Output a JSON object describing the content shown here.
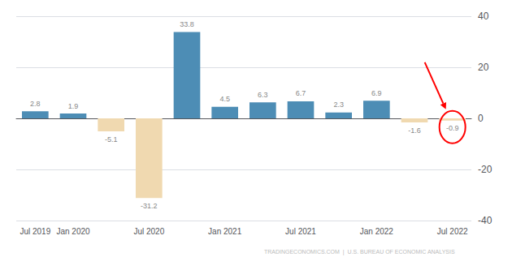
{
  "chart_data": {
    "type": "bar",
    "categories": [
      "Jul 2019",
      "Jan 2020",
      null,
      "Jul 2020",
      null,
      "Jan 2021",
      null,
      "Jul 2021",
      null,
      "Jan 2022",
      null,
      "Jul 2022"
    ],
    "values": [
      2.8,
      1.9,
      -5.1,
      -31.2,
      33.8,
      4.5,
      6.3,
      6.7,
      2.3,
      6.9,
      -1.6,
      -0.9
    ],
    "colors": [
      "#4d8db5",
      "#4d8db5",
      "#f0d9b0",
      "#f0d9b0",
      "#4d8db5",
      "#4d8db5",
      "#4d8db5",
      "#4d8db5",
      "#4d8db5",
      "#4d8db5",
      "#f0d9b0",
      "#f0d9b0"
    ],
    "ylim": [
      -40,
      40
    ],
    "yticks": [
      -40,
      -20,
      0,
      20,
      40
    ],
    "grid": true,
    "data_labels": true,
    "annotations": [
      "TRADINGECONOMICS.COM  |  U.S. BUREAU OF ECONOMIC ANALYSIS"
    ]
  }
}
